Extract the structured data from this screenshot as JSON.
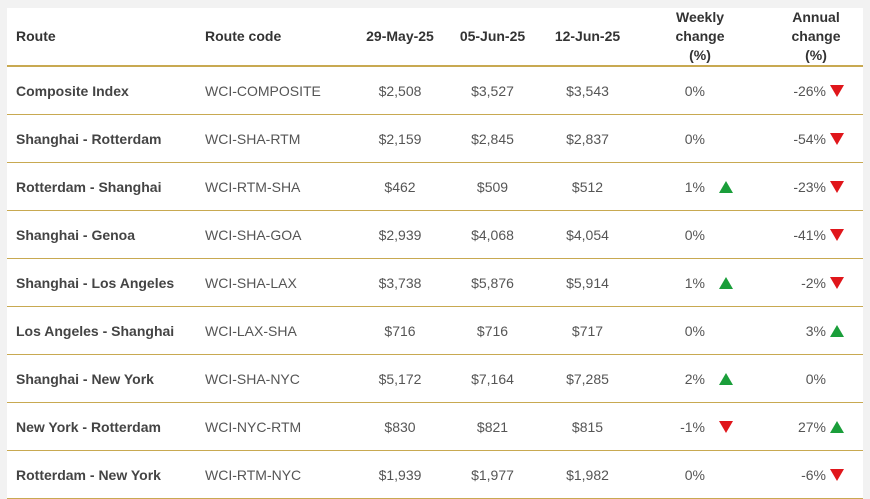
{
  "table": {
    "header": [
      "Route",
      "Route code",
      "29-May-25",
      "05-Jun-25",
      "12-Jun-25",
      "Weekly change (%)",
      "Annual change (%)"
    ],
    "rows": [
      [
        "Composite Index",
        "WCI-COMPOSITE",
        "$2,508",
        "$3,527",
        "$3,543",
        "0%",
        "-26%"
      ],
      [
        "Shanghai - Rotterdam",
        "WCI-SHA-RTM",
        "$2,159",
        "$2,845",
        "$2,837",
        "0%",
        "-54%"
      ],
      [
        "Rotterdam - Shanghai",
        "WCI-RTM-SHA",
        "$462",
        "$509",
        "$512",
        "1%",
        "-23%"
      ],
      [
        "Shanghai - Genoa",
        "WCI-SHA-GOA",
        "$2,939",
        "$4,068",
        "$4,054",
        "0%",
        "-41%"
      ],
      [
        "Shanghai - Los Angeles",
        "WCI-SHA-LAX",
        "$3,738",
        "$5,876",
        "$5,914",
        "1%",
        "-2%"
      ],
      [
        "Los Angeles - Shanghai",
        "WCI-LAX-SHA",
        "$716",
        "$716",
        "$717",
        "0%",
        "3%"
      ],
      [
        "Shanghai - New York",
        "WCI-SHA-NYC",
        "$5,172",
        "$7,164",
        "$7,285",
        "2%",
        "0%"
      ],
      [
        "New York - Rotterdam",
        "WCI-NYC-RTM",
        "$830",
        "$821",
        "$815",
        "-1%",
        "27%"
      ],
      [
        "Rotterdam - New York",
        "WCI-RTM-NYC",
        "$1,939",
        "$1,977",
        "$1,982",
        "0%",
        "-6%"
      ]
    ]
  }
}
